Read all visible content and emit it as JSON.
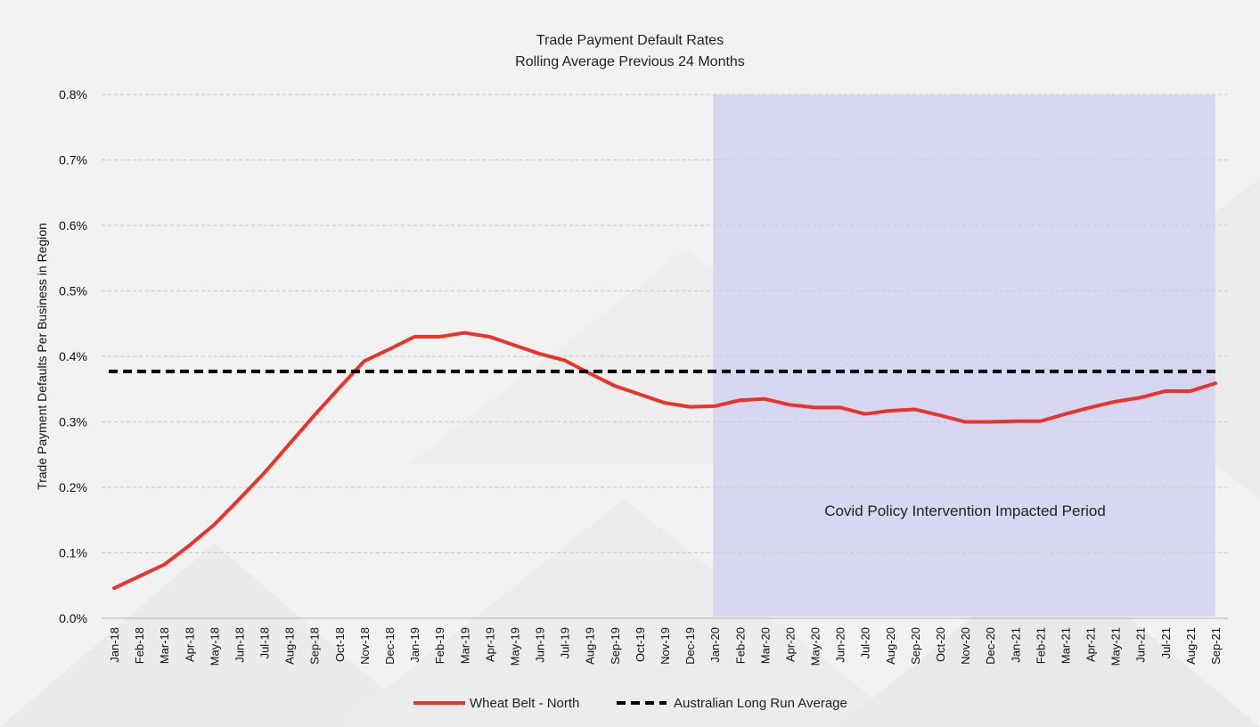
{
  "chart_data": {
    "type": "line",
    "title": "Trade Payment Default Rates",
    "subtitle": "Rolling Average Previous 24 Months",
    "ylabel": "Trade Payment Defaults Per Business in Region",
    "xlabel": "",
    "ylim": [
      0,
      0.8
    ],
    "y_ticks": [
      "0.0%",
      "0.1%",
      "0.2%",
      "0.3%",
      "0.4%",
      "0.5%",
      "0.6%",
      "0.7%",
      "0.8%"
    ],
    "grid": true,
    "legend_position": "bottom",
    "categories": [
      "Jan-18",
      "Feb-18",
      "Mar-18",
      "Apr-18",
      "May-18",
      "Jun-18",
      "Jul-18",
      "Aug-18",
      "Sep-18",
      "Oct-18",
      "Nov-18",
      "Dec-18",
      "Jan-19",
      "Feb-19",
      "Mar-19",
      "Apr-19",
      "May-19",
      "Jun-19",
      "Jul-19",
      "Aug-19",
      "Sep-19",
      "Oct-19",
      "Nov-19",
      "Dec-19",
      "Jan-20",
      "Feb-20",
      "Mar-20",
      "Apr-20",
      "May-20",
      "Jun-20",
      "Jul-20",
      "Aug-20",
      "Sep-20",
      "Oct-20",
      "Nov-20",
      "Dec-20",
      "Jan-21",
      "Feb-21",
      "Mar-21",
      "Apr-21",
      "May-21",
      "Jun-21",
      "Jul-21",
      "Aug-21",
      "Sep-21"
    ],
    "series": [
      {
        "name": "Wheat Belt - North",
        "style": "solid",
        "color": "#e8342a",
        "values": [
          0.046,
          0.064,
          0.082,
          0.111,
          0.143,
          0.182,
          0.222,
          0.266,
          0.31,
          0.352,
          0.393,
          0.411,
          0.43,
          0.43,
          0.436,
          0.43,
          0.417,
          0.404,
          0.394,
          0.374,
          0.355,
          0.342,
          0.329,
          0.323,
          0.324,
          0.333,
          0.335,
          0.326,
          0.322,
          0.322,
          0.312,
          0.317,
          0.319,
          0.31,
          0.3,
          0.3,
          0.301,
          0.301,
          0.312,
          0.322,
          0.331,
          0.337,
          0.347,
          0.347,
          0.359
        ]
      },
      {
        "name": "Australian Long Run Average",
        "style": "dashed",
        "color": "#000000",
        "constant": 0.377
      }
    ],
    "shaded_region": {
      "from": "Jan-20",
      "to": "Sep-21",
      "label": "Covid Policy Intervention Impacted Period",
      "color": "#d4d4f2"
    }
  }
}
